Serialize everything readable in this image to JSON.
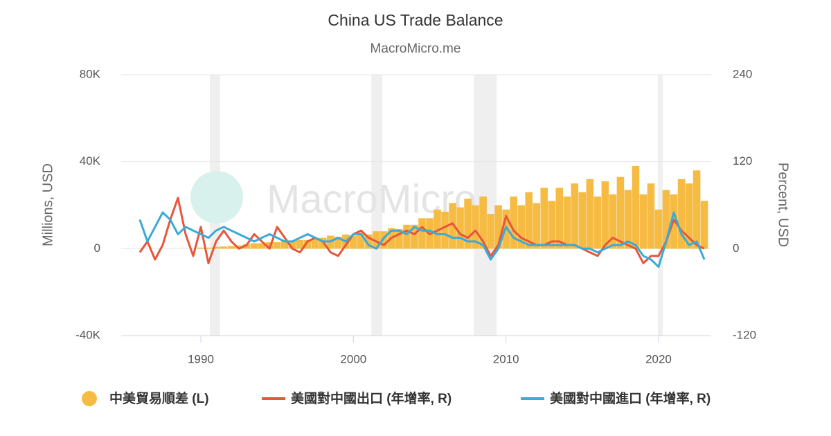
{
  "chart_data": {
    "type": "combo",
    "title": "China US Trade Balance",
    "subtitle": "MacroMicro.me",
    "watermark": "MacroMicro",
    "y_label": "Millions, USD",
    "y2_label": "Percent, USD",
    "xlim": [
      1984.78,
      2023.45
    ],
    "xticks": [
      1990,
      2000,
      2010,
      2020
    ],
    "ylim": [
      -40000,
      80000
    ],
    "yticks": [
      {
        "value": -40000,
        "label": "-40K"
      },
      {
        "value": 0,
        "label": "0"
      },
      {
        "value": 40000,
        "label": "40K"
      },
      {
        "value": 80000,
        "label": "80K"
      }
    ],
    "y2lim": [
      -120,
      240
    ],
    "y2ticks": [
      -120,
      0,
      120,
      240
    ],
    "grid": true,
    "shaded_periods": [
      [
        1990.59,
        1991.27
      ],
      [
        2001.18,
        2001.9
      ],
      [
        2007.89,
        2009.39
      ],
      [
        2019.95,
        2020.27
      ]
    ],
    "x": [
      1986,
      1986.5,
      1987,
      1987.5,
      1988,
      1988.5,
      1989,
      1989.5,
      1990,
      1990.5,
      1991,
      1991.5,
      1992,
      1992.5,
      1993,
      1993.5,
      1994,
      1994.5,
      1995,
      1995.5,
      1996,
      1996.5,
      1997,
      1997.5,
      1998,
      1998.5,
      1999,
      1999.5,
      2000,
      2000.5,
      2001,
      2001.5,
      2002,
      2002.5,
      2003,
      2003.5,
      2004,
      2004.5,
      2005,
      2005.5,
      2006,
      2006.5,
      2007,
      2007.5,
      2008,
      2008.5,
      2009,
      2009.5,
      2010,
      2010.5,
      2011,
      2011.5,
      2012,
      2012.5,
      2013,
      2013.5,
      2014,
      2014.5,
      2015,
      2015.5,
      2016,
      2016.5,
      2017,
      2017.5,
      2018,
      2018.5,
      2019,
      2019.5,
      2020,
      2020.5,
      2021,
      2021.5,
      2022,
      2022.5,
      2023
    ],
    "legend": "bottom",
    "series": [
      {
        "name": "中美貿易順差 (L)",
        "type": "bar",
        "color": "#f6bb43",
        "values": [
          0,
          0,
          0,
          0,
          0,
          0,
          0,
          0,
          500,
          500,
          800,
          1000,
          1200,
          1500,
          2000,
          2500,
          2500,
          3000,
          3000,
          3500,
          3500,
          4000,
          4000,
          5000,
          5000,
          6000,
          5500,
          6500,
          6000,
          7500,
          6500,
          8000,
          8000,
          9500,
          9000,
          11000,
          11000,
          14000,
          14000,
          18000,
          17000,
          21000,
          19000,
          23000,
          20000,
          24000,
          16000,
          20000,
          18000,
          24000,
          20000,
          26000,
          21000,
          28000,
          22000,
          28000,
          24000,
          30000,
          26000,
          32000,
          24000,
          31000,
          25000,
          33000,
          27000,
          38000,
          25000,
          30000,
          18000,
          27000,
          25000,
          32000,
          30000,
          36000,
          22000
        ]
      },
      {
        "name": "美國對中國出口 (年增率, R)",
        "type": "line",
        "axis": "y2",
        "color": "#e8553a",
        "values": [
          -5,
          10,
          -15,
          5,
          40,
          70,
          20,
          -10,
          30,
          -20,
          10,
          25,
          10,
          0,
          5,
          20,
          10,
          0,
          30,
          15,
          0,
          -5,
          10,
          15,
          10,
          -5,
          -10,
          5,
          20,
          25,
          15,
          10,
          5,
          15,
          20,
          25,
          20,
          30,
          20,
          25,
          30,
          35,
          20,
          15,
          25,
          10,
          -10,
          5,
          45,
          25,
          15,
          10,
          5,
          5,
          10,
          10,
          5,
          5,
          0,
          -5,
          -10,
          5,
          15,
          10,
          5,
          0,
          -20,
          -10,
          -10,
          10,
          40,
          25,
          15,
          5,
          0
        ]
      },
      {
        "name": "美國對中國進口 (年增率, R)",
        "type": "line",
        "axis": "y2",
        "color": "#3aaad8",
        "values": [
          40,
          10,
          30,
          50,
          40,
          20,
          30,
          25,
          20,
          15,
          25,
          30,
          25,
          20,
          15,
          10,
          15,
          20,
          15,
          10,
          10,
          15,
          20,
          15,
          10,
          10,
          15,
          10,
          20,
          20,
          5,
          0,
          15,
          25,
          25,
          20,
          30,
          25,
          25,
          20,
          20,
          15,
          15,
          10,
          10,
          5,
          -15,
          0,
          30,
          15,
          10,
          5,
          5,
          5,
          5,
          5,
          5,
          5,
          0,
          0,
          -5,
          0,
          5,
          5,
          10,
          5,
          -10,
          -15,
          -25,
          10,
          50,
          20,
          5,
          10,
          -15
        ]
      }
    ]
  }
}
